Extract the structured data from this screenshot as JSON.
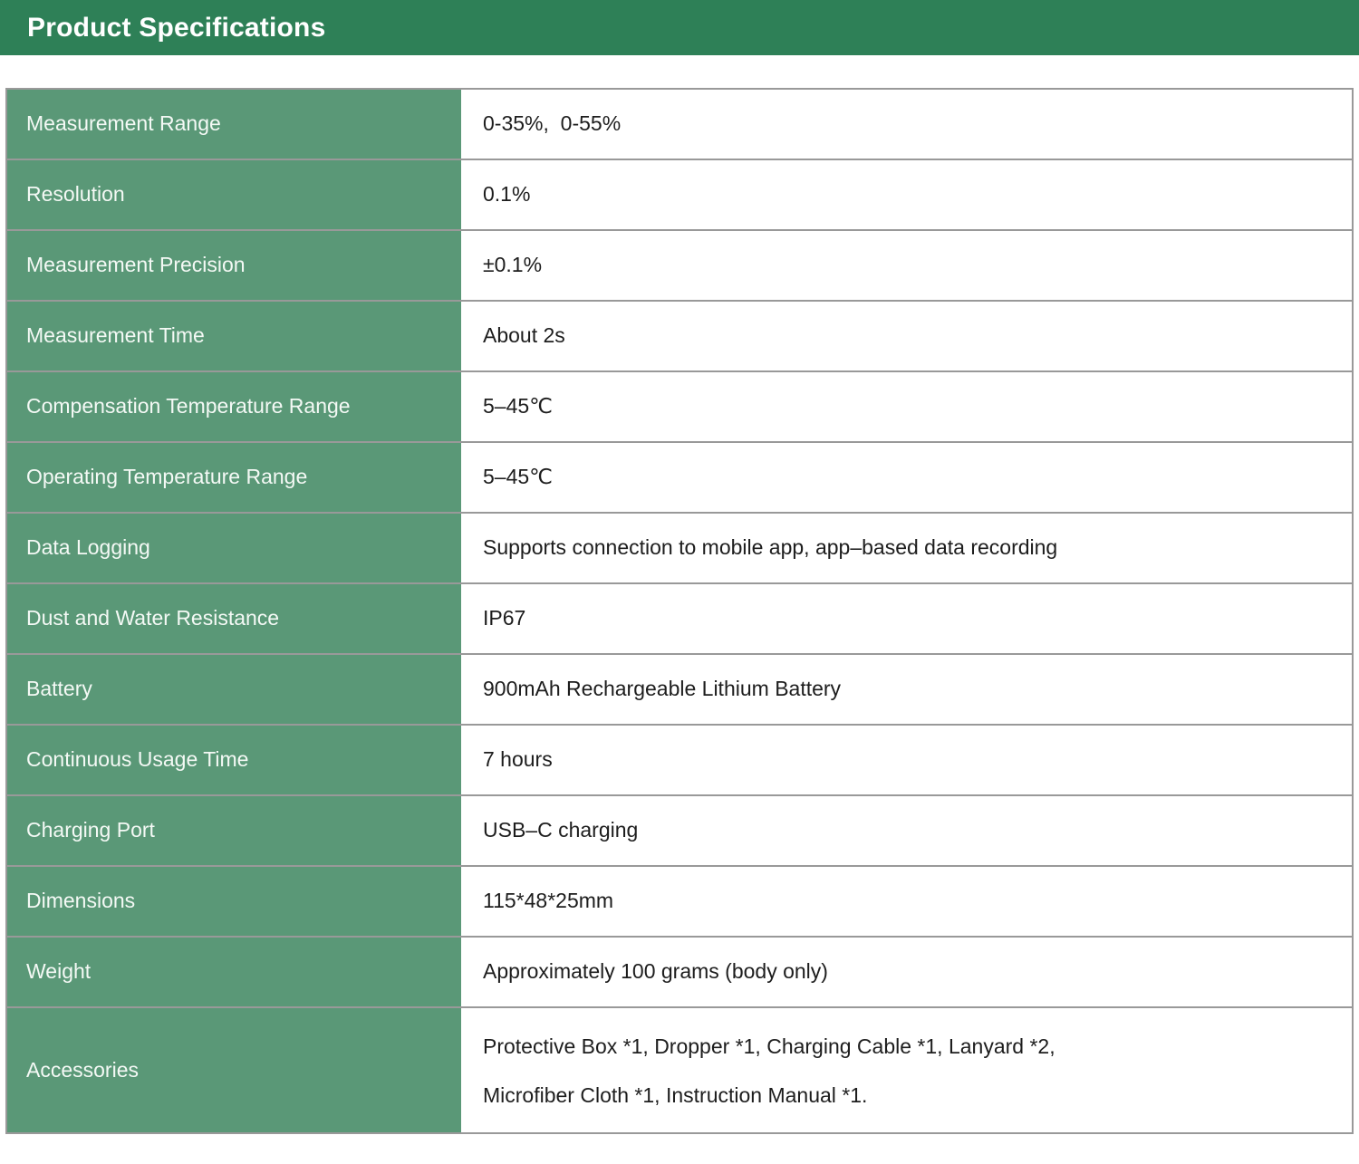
{
  "header": {
    "title": "Product Specifications",
    "background": "#2e8057",
    "text_color": "#ffffff"
  },
  "table": {
    "label_column_background": "#5a9877",
    "label_text_color": "#f4f9f5",
    "value_text_color": "#1d1d1d",
    "border_color": "rgba(0,0,0,0.40)",
    "rows": [
      {
        "label": "Measurement Range",
        "value": "0-35%,  0-55%"
      },
      {
        "label": "Resolution",
        "value": "0.1%"
      },
      {
        "label": "Measurement Precision",
        "value": "±0.1%"
      },
      {
        "label": "Measurement Time",
        "value": "About 2s"
      },
      {
        "label": "Compensation Temperature Range",
        "value": "5–45℃"
      },
      {
        "label": "Operating Temperature Range",
        "value": "5–45℃"
      },
      {
        "label": "Data Logging",
        "value": "Supports connection to mobile app, app–based data recording"
      },
      {
        "label": "Dust and Water Resistance",
        "value": "IP67"
      },
      {
        "label": "Battery",
        "value": "900mAh Rechargeable Lithium Battery"
      },
      {
        "label": "Continuous Usage Time",
        "value": "7 hours"
      },
      {
        "label": "Charging Port",
        "value": "USB–C charging"
      },
      {
        "label": "Dimensions",
        "value": "115*48*25mm"
      },
      {
        "label": "Weight",
        "value": "Approximately 100 grams (body only)"
      },
      {
        "label": "Accessories",
        "value": "Protective Box *1, Dropper *1, Charging Cable *1, Lanyard *2,\nMicrofiber Cloth *1, Instruction Manual *1."
      }
    ]
  }
}
